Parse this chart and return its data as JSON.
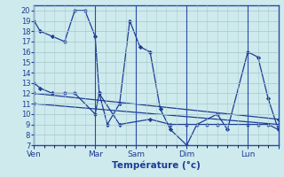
{
  "xlabel": "Température (°c)",
  "background_color": "#ceeaec",
  "grid_color": "#a8cdd0",
  "line_color": "#1e3c96",
  "ylim": [
    7,
    20.5
  ],
  "yticks": [
    7,
    8,
    9,
    10,
    11,
    12,
    13,
    14,
    15,
    16,
    17,
    18,
    19,
    20
  ],
  "xlim": [
    0,
    120
  ],
  "xtick_positions": [
    0,
    30,
    50,
    75,
    105,
    120
  ],
  "xtick_labels": [
    "Ven",
    "Mar",
    "Sam",
    "Dim",
    "Lun",
    ""
  ],
  "series": [
    {
      "x": [
        0,
        3,
        9,
        15,
        20,
        25,
        30,
        32,
        36,
        42,
        47,
        52,
        57,
        62,
        67,
        75,
        80,
        90,
        95,
        105,
        110,
        115,
        120
      ],
      "y": [
        19,
        18,
        17.5,
        17,
        20,
        20,
        17.5,
        12,
        9,
        11,
        19.0,
        16.5,
        16,
        10.5,
        8.5,
        7,
        9,
        10,
        8.5,
        16,
        15.5,
        11.5,
        8.5
      ]
    },
    {
      "x": [
        0,
        3,
        9,
        15,
        20,
        30,
        32,
        42,
        57,
        67,
        75,
        85,
        90,
        105,
        110,
        115,
        120
      ],
      "y": [
        13,
        12.5,
        12,
        12,
        12,
        10,
        12,
        9,
        9.5,
        9,
        9,
        9,
        9,
        9,
        9,
        9,
        8.5
      ]
    },
    {
      "x": [
        0,
        120
      ],
      "y": [
        12,
        9.5
      ]
    },
    {
      "x": [
        0,
        120
      ],
      "y": [
        11,
        9
      ]
    }
  ]
}
